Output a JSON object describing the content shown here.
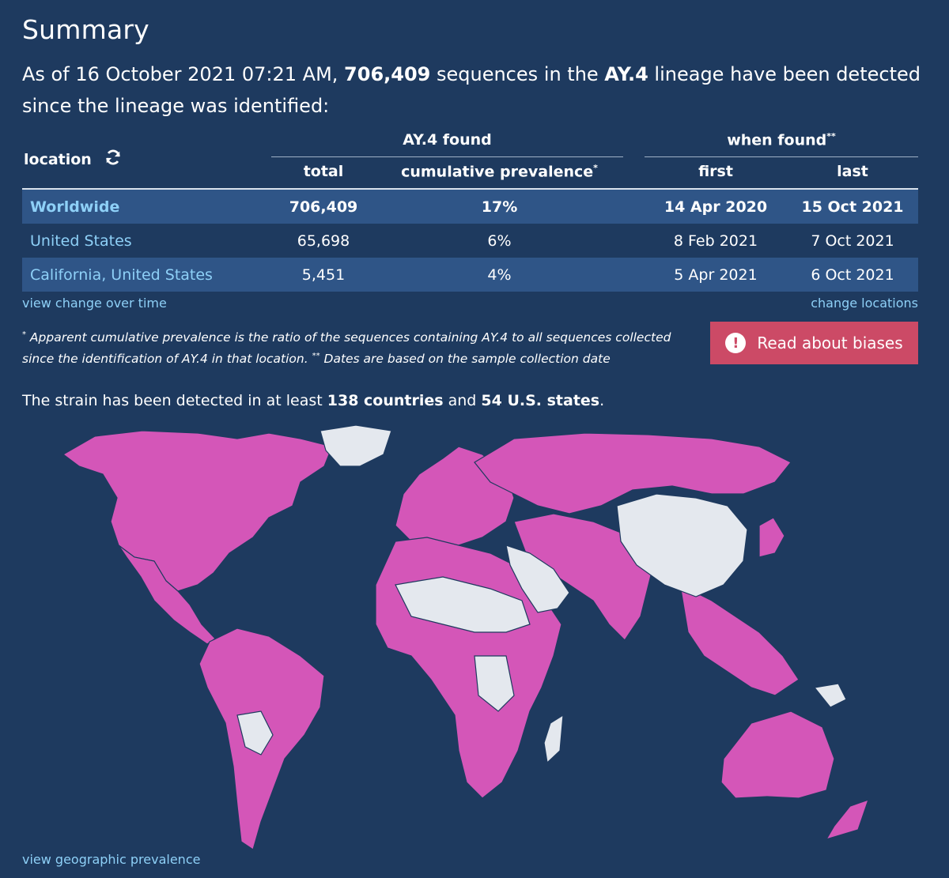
{
  "title": "Summary",
  "intro": {
    "prefix": "As of 16 October 2021 07:21 AM, ",
    "count": "706,409",
    "middle": " sequences in the ",
    "lineage": "AY.4",
    "suffix": " lineage have been detected since the lineage was identified:"
  },
  "table": {
    "location_label": "location",
    "group_found": "AY.4 found",
    "group_when": "when found",
    "group_when_mark": "**",
    "col_total": "total",
    "col_prevalence": "cumulative prevalence",
    "col_prevalence_mark": "*",
    "col_first": "first",
    "col_last": "last",
    "rows": [
      {
        "location": "Worldwide",
        "total": "706,409",
        "prevalence": "17%",
        "first": "14 Apr 2020",
        "last": "15 Oct 2021"
      },
      {
        "location": "United States",
        "total": "65,698",
        "prevalence": "6%",
        "first": "8 Feb 2021",
        "last": "7 Oct 2021"
      },
      {
        "location": "California, United States",
        "total": "5,451",
        "prevalence": "4%",
        "first": "5 Apr 2021",
        "last": "6 Oct 2021"
      }
    ]
  },
  "links": {
    "change_over_time": "view change over time",
    "change_locations": "change locations",
    "geographic": "view geographic prevalence"
  },
  "footnote": {
    "mark1": "*",
    "text1": " Apparent cumulative prevalence is the ratio of the sequences containing AY.4 to all sequences collected since the identification of AY.4 in that location. ",
    "mark2": "**",
    "text2": " Dates are based on the sample collection date"
  },
  "bias_button": {
    "label": "Read about biases",
    "icon": "!"
  },
  "detected": {
    "prefix": "The strain has been detected in at least ",
    "countries": "138 countries",
    "middle": " and ",
    "states": "54 U.S. states",
    "suffix": "."
  },
  "colors": {
    "background": "#1e3a5f",
    "detected": "#d456b8",
    "not_detected": "#e4e8ee",
    "link": "#8ed0f7",
    "button": "#cc4a66"
  }
}
